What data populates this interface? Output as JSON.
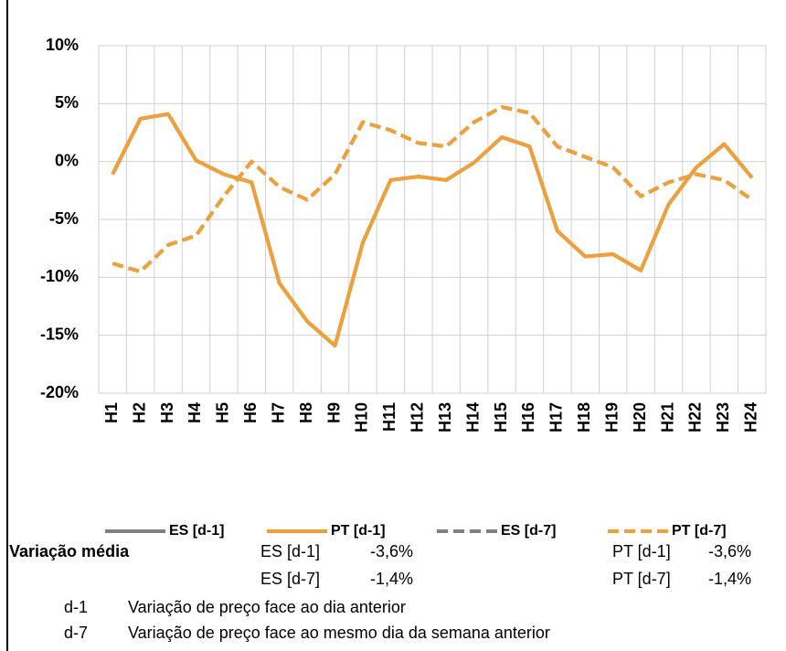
{
  "chart_data": {
    "type": "line",
    "categories": [
      "H1",
      "H2",
      "H3",
      "H4",
      "H5",
      "H6",
      "H7",
      "H8",
      "H9",
      "H10",
      "H11",
      "H12",
      "H13",
      "H14",
      "H15",
      "H16",
      "H17",
      "H18",
      "H19",
      "H20",
      "H21",
      "H22",
      "H23",
      "H24"
    ],
    "series": [
      {
        "name": "ES [d-1]",
        "color": "#808080",
        "dashed": false,
        "values": [
          -1.1,
          3.7,
          4.1,
          0.1,
          -1.1,
          -1.8,
          -10.5,
          -13.8,
          -15.9,
          -7,
          -1.6,
          -1.3,
          -1.6,
          -0.1,
          2.1,
          1.3,
          -6.0,
          -8.2,
          -8.0,
          -9.4,
          -3.7,
          -0.5,
          1.5,
          -1.4
        ]
      },
      {
        "name": "PT [d-1]",
        "color": "#f0a038",
        "dashed": false,
        "values": [
          -1.1,
          3.7,
          4.1,
          0.1,
          -1.1,
          -1.8,
          -10.5,
          -13.8,
          -15.9,
          -7,
          -1.6,
          -1.3,
          -1.6,
          -0.1,
          2.1,
          1.3,
          -6.0,
          -8.2,
          -8.0,
          -9.4,
          -3.7,
          -0.5,
          1.5,
          -1.4
        ]
      },
      {
        "name": "ES [d-7]",
        "color": "#808080",
        "dashed": true,
        "values": [
          -8.8,
          -9.5,
          -7.2,
          -6.4,
          -3,
          0,
          -2.2,
          -3.3,
          -1.1,
          3.4,
          2.7,
          1.6,
          1.3,
          3.4,
          4.7,
          4.2,
          1.3,
          0.4,
          -0.5,
          -3.0,
          -1.8,
          -1.1,
          -1.6,
          -3.3
        ]
      },
      {
        "name": "PT [d-7]",
        "color": "#f0a038",
        "dashed": true,
        "values": [
          -8.8,
          -9.5,
          -7.2,
          -6.4,
          -3,
          0,
          -2.2,
          -3.3,
          -1.1,
          3.4,
          2.7,
          1.6,
          1.3,
          3.4,
          4.7,
          4.2,
          1.3,
          0.4,
          -0.5,
          -3.0,
          -1.8,
          -1.1,
          -1.6,
          -3.3
        ]
      }
    ],
    "ylim": [
      -20,
      10
    ],
    "yticks": [
      {
        "value": -20,
        "label": "-20%"
      },
      {
        "value": -15,
        "label": "-15%"
      },
      {
        "value": -10,
        "label": "-10%"
      },
      {
        "value": -5,
        "label": "-5%"
      },
      {
        "value": 0,
        "label": "0%"
      },
      {
        "value": 5,
        "label": "5%"
      },
      {
        "value": 10,
        "label": "10%"
      }
    ],
    "grid": true
  },
  "summary": {
    "label": "Variação média",
    "rows": [
      [
        "ES [d-1]",
        "-3,6%",
        "PT [d-1]",
        "-3,6%"
      ],
      [
        "ES [d-7]",
        "-1,4%",
        "PT [d-7]",
        "-1,4%"
      ]
    ]
  },
  "notes": [
    [
      "d-1",
      "Variação de preço face ao dia anterior"
    ],
    [
      "d-7",
      "Variação de preço face ao mesmo dia da semana anterior"
    ]
  ]
}
